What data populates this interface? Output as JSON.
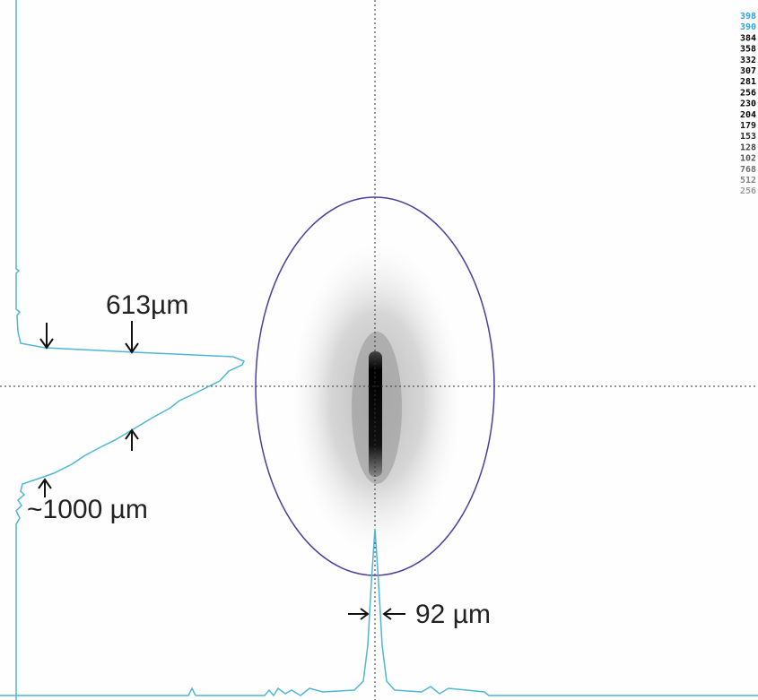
{
  "annotations": {
    "vertical_width": "613µm",
    "vertical_wide": "~1000 µm",
    "horizontal_width": "92 µm"
  },
  "scale_labels": [
    "398",
    "390",
    "384",
    "358",
    "332",
    "307",
    "281",
    "256",
    "230",
    "204",
    "179",
    "153",
    "128",
    "102",
    "768",
    "512",
    "256"
  ]
}
